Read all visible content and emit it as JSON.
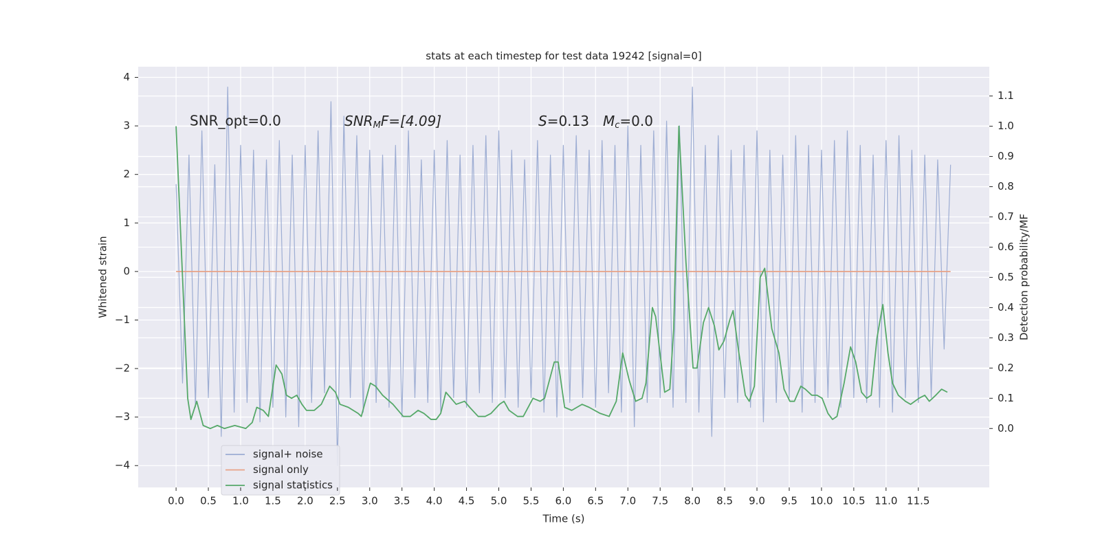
{
  "chart_data": {
    "type": "line",
    "title": "stats at each timestep for test data 19242 [signal=0]",
    "xlabel": "Time (s)",
    "ylabel": "Whitened strain",
    "y2label": "Detection probability/MF",
    "annotations": [
      [
        "SNR_opt=0.0"
      ],
      [
        "SNR",
        "M",
        "F=[4.09]"
      ],
      [
        "S",
        "=0.13"
      ],
      [
        "M",
        "c",
        "=0.0"
      ]
    ],
    "xlim": [
      -0.587,
      12.6
    ],
    "ylim": [
      -4.45,
      4.22
    ],
    "y2lim": [
      -0.195,
      1.197
    ],
    "xticks": [
      {
        "value": 0,
        "label": "0.0"
      },
      {
        "value": 0.5,
        "label": "0.5"
      },
      {
        "value": 1,
        "label": "1.0"
      },
      {
        "value": 1.5,
        "label": "1.5"
      },
      {
        "value": 2,
        "label": "2.0"
      },
      {
        "value": 2.5,
        "label": "2.5"
      },
      {
        "value": 3,
        "label": "3.0"
      },
      {
        "value": 3.5,
        "label": "3.5"
      },
      {
        "value": 4,
        "label": "4.0"
      },
      {
        "value": 4.5,
        "label": "4.5"
      },
      {
        "value": 5,
        "label": "5.0"
      },
      {
        "value": 5.5,
        "label": "5.5"
      },
      {
        "value": 6,
        "label": "6.0"
      },
      {
        "value": 6.5,
        "label": "6.5"
      },
      {
        "value": 7,
        "label": "7.0"
      },
      {
        "value": 7.5,
        "label": "7.5"
      },
      {
        "value": 8,
        "label": "8.0"
      },
      {
        "value": 8.5,
        "label": "8.5"
      },
      {
        "value": 9,
        "label": "9.0"
      },
      {
        "value": 9.5,
        "label": "9.5"
      },
      {
        "value": 10,
        "label": "10.0"
      },
      {
        "value": 10.5,
        "label": "10.5"
      },
      {
        "value": 11,
        "label": "11.0"
      },
      {
        "value": 11.5,
        "label": "11.5"
      }
    ],
    "yticks": [
      {
        "value": -4,
        "label": "−4"
      },
      {
        "value": -3,
        "label": "−3"
      },
      {
        "value": -2,
        "label": "−2"
      },
      {
        "value": -1,
        "label": "−1"
      },
      0,
      1,
      2,
      3,
      4
    ],
    "y2ticks": [
      {
        "value": 0,
        "label": "0.0"
      },
      0.1,
      0.2,
      0.3,
      0.4,
      0.5,
      0.6,
      0.7,
      0.8,
      0.9,
      {
        "value": 1,
        "label": "1.0"
      },
      1.1
    ],
    "grid": true,
    "legend": "lower left",
    "series": [
      {
        "name": "signal+ noise",
        "color": "#9dadd3",
        "x": [
          0,
          0.1,
          0.2,
          0.3,
          0.4,
          0.5,
          0.6,
          0.7,
          0.8,
          0.9,
          1,
          1.1,
          1.2,
          1.3,
          1.4,
          1.5,
          1.6,
          1.7,
          1.8,
          1.9,
          2,
          2.1,
          2.2,
          2.3,
          2.4,
          2.5,
          2.6,
          2.7,
          2.8,
          2.9,
          3,
          3.1,
          3.2,
          3.3,
          3.4,
          3.5,
          3.6,
          3.7,
          3.8,
          3.9,
          4,
          4.1,
          4.2,
          4.3,
          4.4,
          4.5,
          4.6,
          4.7,
          4.8,
          4.9,
          5,
          5.1,
          5.2,
          5.3,
          5.4,
          5.5,
          5.6,
          5.7,
          5.8,
          5.9,
          6,
          6.1,
          6.2,
          6.3,
          6.4,
          6.5,
          6.6,
          6.7,
          6.8,
          6.9,
          7,
          7.1,
          7.2,
          7.3,
          7.4,
          7.5,
          7.6,
          7.7,
          7.8,
          7.9,
          8,
          8.1,
          8.2,
          8.3,
          8.4,
          8.5,
          8.6,
          8.7,
          8.8,
          8.9,
          9,
          9.1,
          9.2,
          9.3,
          9.4,
          9.5,
          9.6,
          9.7,
          9.8,
          9.9,
          10,
          10.1,
          10.2,
          10.3,
          10.4,
          10.5,
          10.6,
          10.7,
          10.8,
          10.9,
          11,
          11.1,
          11.2,
          11.3,
          11.4,
          11.5,
          11.6,
          11.7,
          11.8,
          11.9,
          12
        ],
        "values": [
          1.8,
          -2.3,
          2.4,
          -2.8,
          2.9,
          -2.6,
          2.2,
          -3.4,
          3.8,
          -2.9,
          2.6,
          -2.7,
          2.5,
          -3.1,
          2.3,
          -2.8,
          2.7,
          -3.0,
          2.4,
          -3.2,
          2.6,
          -2.7,
          2.9,
          -2.5,
          3.5,
          -4.0,
          3.2,
          -2.6,
          2.8,
          -2.9,
          2.5,
          -2.7,
          2.4,
          -2.8,
          2.6,
          -3.0,
          2.9,
          -2.6,
          2.3,
          -2.7,
          2.5,
          -2.9,
          2.7,
          -2.6,
          2.4,
          -2.8,
          2.6,
          -2.5,
          2.8,
          -2.7,
          2.9,
          -2.6,
          2.5,
          -2.8,
          2.3,
          -2.6,
          2.7,
          -2.9,
          2.4,
          -3.0,
          2.6,
          -2.7,
          2.8,
          -2.6,
          2.5,
          -2.8,
          2.7,
          -2.5,
          2.6,
          -2.9,
          3.0,
          -3.2,
          2.6,
          -2.7,
          2.9,
          -2.6,
          3.1,
          -2.8,
          3.0,
          -2.7,
          3.8,
          -2.9,
          2.6,
          -3.4,
          2.8,
          -2.6,
          2.5,
          -2.7,
          2.6,
          -2.8,
          2.9,
          -3.1,
          2.5,
          -2.7,
          2.4,
          -2.6,
          2.8,
          -2.9,
          2.6,
          -2.7,
          2.5,
          -2.6,
          2.7,
          -2.8,
          2.9,
          -2.6,
          2.6,
          -2.7,
          2.4,
          -2.8,
          2.7,
          -2.9,
          2.8,
          -2.6,
          2.5,
          -2.7,
          2.4,
          -2.6,
          2.3,
          -1.6,
          2.2
        ]
      },
      {
        "name": "signal only",
        "color": "#e8a286",
        "x": [
          0,
          12
        ],
        "values": [
          0,
          0
        ]
      },
      {
        "name": "signal statistics",
        "color": "#55a868",
        "axis": "y2",
        "x": [
          0,
          0.18,
          0.23,
          0.32,
          0.42,
          0.53,
          0.64,
          0.75,
          0.91,
          1.08,
          1.18,
          1.25,
          1.35,
          1.43,
          1.55,
          1.64,
          1.71,
          1.79,
          1.87,
          1.95,
          2.02,
          2.14,
          2.25,
          2.38,
          2.47,
          2.54,
          2.67,
          2.82,
          2.87,
          3.01,
          3.09,
          3.2,
          3.36,
          3.52,
          3.63,
          3.75,
          3.84,
          3.95,
          4.03,
          4.1,
          4.18,
          4.26,
          4.34,
          4.47,
          4.55,
          4.68,
          4.79,
          4.88,
          5.01,
          5.08,
          5.16,
          5.29,
          5.38,
          5.53,
          5.64,
          5.71,
          5.86,
          5.92,
          6.02,
          6.13,
          6.29,
          6.4,
          6.57,
          6.71,
          6.82,
          6.92,
          7.02,
          7.12,
          7.22,
          7.28,
          7.38,
          7.43,
          7.57,
          7.65,
          7.71,
          7.79,
          7.9,
          8.01,
          8.07,
          8.17,
          8.25,
          8.34,
          8.41,
          8.49,
          8.58,
          8.63,
          8.72,
          8.82,
          8.88,
          8.96,
          9.05,
          9.12,
          9.23,
          9.34,
          9.42,
          9.51,
          9.58,
          9.68,
          9.75,
          9.85,
          9.93,
          10.01,
          10.1,
          10.17,
          10.24,
          10.35,
          10.45,
          10.53,
          10.62,
          10.7,
          10.77,
          10.86,
          10.95,
          11.03,
          11.1,
          11.19,
          11.3,
          11.38,
          11.51,
          11.6,
          11.67,
          11.77,
          11.86,
          11.95
        ],
        "values": [
          1.0,
          0.1,
          0.03,
          0.09,
          0.01,
          0.0,
          0.01,
          0.0,
          0.01,
          0.0,
          0.02,
          0.07,
          0.06,
          0.04,
          0.21,
          0.18,
          0.11,
          0.1,
          0.11,
          0.08,
          0.06,
          0.06,
          0.08,
          0.14,
          0.12,
          0.08,
          0.07,
          0.05,
          0.04,
          0.15,
          0.14,
          0.11,
          0.08,
          0.04,
          0.04,
          0.06,
          0.05,
          0.03,
          0.03,
          0.05,
          0.12,
          0.1,
          0.08,
          0.09,
          0.07,
          0.04,
          0.04,
          0.05,
          0.08,
          0.09,
          0.06,
          0.04,
          0.04,
          0.1,
          0.09,
          0.1,
          0.22,
          0.22,
          0.07,
          0.06,
          0.08,
          0.07,
          0.05,
          0.04,
          0.09,
          0.25,
          0.16,
          0.09,
          0.1,
          0.15,
          0.4,
          0.37,
          0.12,
          0.13,
          0.33,
          1.0,
          0.55,
          0.2,
          0.2,
          0.35,
          0.4,
          0.34,
          0.26,
          0.29,
          0.36,
          0.39,
          0.25,
          0.11,
          0.09,
          0.14,
          0.5,
          0.53,
          0.33,
          0.25,
          0.13,
          0.09,
          0.09,
          0.14,
          0.13,
          0.11,
          0.11,
          0.1,
          0.05,
          0.03,
          0.04,
          0.15,
          0.27,
          0.22,
          0.12,
          0.1,
          0.11,
          0.3,
          0.41,
          0.25,
          0.15,
          0.11,
          0.09,
          0.08,
          0.1,
          0.11,
          0.09,
          0.11,
          0.13,
          0.12
        ]
      }
    ]
  }
}
